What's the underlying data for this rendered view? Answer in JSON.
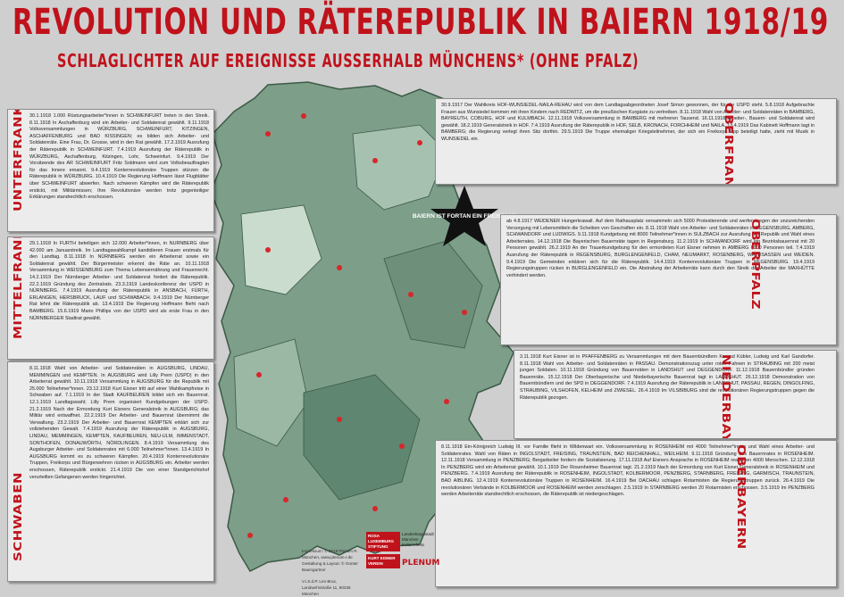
{
  "header": {
    "title": "REVOLUTION UND RÄTEREPUBLIK IN BAIERN 1918/19",
    "subtitle": "SCHLAGLICHTER AUF EREIGNISSE AUSSERHALB MÜNCHENS* (OHNE PFALZ)"
  },
  "panels": [
    {
      "label": "UNTERFRANKEN",
      "text": "30.1.1918 1.000 Rüstungsarbeiter*innen in SCHWEINFURT treten in den Streik. 8.11.1918 In Aschaffenburg wird ein Arbeiter- und Soldatenrat gewählt. 9.11.1918 Volksversammlungen in WÜRZBURG, SCHWEINFURT, KITZINGEN, ASCHAFFENBURG und BAD KISSINGEN; es bilden sich Arbeiter- und Soldatenräte. Eine Frau, Dr. Grosse, wird in den Rat gewählt. 17.2.1919 Ausrufung der Räterepublik in SCHWEINFURT. 7.4.1919 Ausrufung der Räterepublik in WÜRZBURG, Aschaffenburg, Kitzingen, Lohr, Schweinfurt. 9.4.1919 Der Vorsitzende des AR SCHWEINFURT Fritz Soldmann wird zum Volksbeauftragten für das Innere ernannt. 9.4.1919 Konterrevolutionäre Truppen stürzen die Räterepublik in WÜRZBURG. 10.4.1919 Die Regierung Hoffmann lässt Flugblätter über SCHWEINFURT abwerfen. Nach schweren Kämpfen wird die Räterepublik erstickt, mit Militärmissen; Ihre Revolutionäre werden trotz gegenteiliger Erklärungen standrechtlich erschossen."
    },
    {
      "label": "MITTELFRANKEN",
      "text": "29.1.1918 In FÜRTH beteiligen sich 12.000 Arbeiter*innen, in NÜRNBERG über 42.000 am Januarstreik. Im Landtagswahlkampf kandidieren Frauen erstmals für den Landtag. 8.11.1918 In NÜRNBERG werden ein Arbeiterrat sowie ein Soldatenrat gewählt. Der Bürgermeister erkennt die Räte an. 10.11.1918 Versammlung in WEISSENBURG zum Thema Lebensernährung und Frauenrecht. 14.2.1919 Der Nürnberger Arbeiter- und Soldatenrat fordert die Räterepublik. 22.2.1919 Gründung des Zentralrats. 23.3.1919 Landeskonferenz der USPD in NÜRNBERG. 7.4.1919 Ausrufung der Räterepublik in ANSBACH, FÜRTH, ERLANGEN, HERSBRUCK, LAUF und SCHWABACH. 9.4.1919 Der Nürnberger Rat lehnt die Räterepublik ab. 13.4.1919 Die Regierung Hoffmann flieht nach BAMBERG. 15.6.1919 Mario Phillips von der USPD wird als erste Frau in den NÜRNBERGER Stadtrat gewählt."
    },
    {
      "label": "SCHWABEN",
      "text": "8.11.1918 Wahl von Arbeiter- und Soldatenräten in AUGSBURG, LINDAU, MEMMINGEN und KEMPTEN. In AUGSBURG wird Lilly Prem (USPD) in den Arbeiterrat gewählt. 10.11.1918 Versammlung in AUGSBURG für die Republik mit 25.000 Teilnehmer*innen. 23.12.1918 Kurt Eisner tritt auf einer Wahlkampfreise in Schwaben auf. 7.1.1919 In der Stadt KAUFBEUREN bildet sich ein Bauernrat. 12.1.1919 Landtagswahl; Lilly Prem organisiert Kundgebungen der USPD. 21.2.1919 Nach der Ermordung Kurt Eisners Generalstreik in AUGSBURG; das Militär wird entwaffnet. 22.2.1919 Der Arbeiter- und Bauernrat übernimmt die Verwaltung. 23.2.1919 Der Arbeiter- und Bauernrat KEMPTEN erklärt sich zur vollziehenden Gewalt. 7.4.1919 Ausrufung der Räterepublik in AUGSBURG, LINDAU, MEMMINGEN, KEMPTEN, KAUFBEUREN, NEU-ULM, IMMENSTADT, SONTHOFEN, DONAUWÖRTH, NÖRDLINGEN. 8.4.1919 Versammlung des Augsburger Arbeiter- und Soldatenrates mit 6.000 Teilnehmer*innen. 13.4.1919 In AUGSBURG kommt es zu schweren Kämpfen. 20.4.1919 Konterrevolutionäre Truppen, Freikorps und Bürgerwehren rücken in AUGSBURG ein. Arbeiter werden erschossen, Räterepublik erstickt. 21.4.1919 Die von einer Standgerichtshof verurteilten Gefangenen werden hingerichtet."
    },
    {
      "label": "OBERFRANKEN",
      "text": "30.9.1917 Der Wahlkreis HOF-WUNSIEDEL-NAILA-REHAU wird von dem Landtagsabgeordneten Josef Simon gewonnen, der für die USPD steht. 5.8.1918 Aufgebrachte Frauen aus Wunsiedel kommen mit ihren Kindern nach REDWITZ, um die preußischen Kurgäste zu vertreiben. 8.11.1918 Wahl von Arbeiter- und Soldatenräten in BAMBERG, BAYREUTH, COBURG, HOF und KULMBACH. 12.11.1918 Volksversammlung in BAMBERG mit mehreren Tausend. 16.11.1918 Arbeiter-, Bauern- und Soldatenrat wird gewählt. 18.2.1919 Generalstreik in HOF. 7.4.1919 Ausrufung der Räterepublik in HOF, SELB, KRONACH, FORCHHEIM und NAILA. 13.4.1919 Das Kabinett Hoffmann tagt in BAMBERG; die Regierung verlegt ihren Sitz dorthin. 29.5.1919 Die Truppe ehemaliger Kriegsteilnehmer, der sich ein Freikorps Epp beteiligt hatte, zieht mit Musik in WUNSIEDEL ein."
    },
    {
      "label": "OBERPFALZ",
      "text": "ab 4.8.1917 WEIDENER Hungerkrawall. Auf dem Rathausplatz versammeln sich 5000 Protestierende und werfen wegen der unzureichenden Versorgung mit Lebensmitteln die Scheiben von Geschäften ein. 8.11.1918 Wahl von Arbeiter- und Soldatenräten in REGENSBURG, AMBERG, SCHWANDORF und LUDWIGS. 9.11.1918 Kundgebung mit 8000 Teilnehmer*innen in SULZBACH zur Ausrufung der Republik und Wahl eines Arbeiterrates. 14.12.1918 Die Bayerischen Bauernräte tagen in Regensburg. 11.2.1919 In SCHWANDORF wird ein Bezirksbauernrat mit 20 Personen gewählt. 26.2.1919 An der Trauerkundgebung für den ermordeten Kurt Eisner nehmen in AMBERG 6000 Personen teil. 7.4.1919 Ausrufung der Räterepublik in REGENSBURG, BURGLENGENFELD, CHAM, NEUMARKT, ROSENBERG, WALDSASSEN und WEIDEN. 9.4.1919 Die Gemeinden erklären sich für die Räterepublik. 14.4.1919 Konterrevolutionäre Truppen in REGENSBURG. 19.4.1919 Regierungstruppen rücken in BURGLENGENFELD ein. Die Abstrafung der Arbeiterräte kann durch den Streik der Arbeiter der MAXHÜTTE verhindert werden."
    },
    {
      "label": "NIEDERBAYERN",
      "text": "3.11.1918 Kurt Eisner ist in PFAFFENBERG zu Versammlungen mit dem Bauernbündlern Konrad Kübler, Ludwig und Karl Gandorfer. 8.11.1918 Wahl von Arbeiter- und Soldatenräten in PASSAU. Demonstrationszug unter roten Fahnen in STRAUBING mit 200 meist jungen Soldaten. 10.11.1918 Gründung von Bauernräten in LANDSHUT und DEGGENDORF. 11.12.1918 Bauernbündler gründen Bauernräte. 15.12.1918 Der Oberbayerische und Niederbayerische Bauernrat tagt in LANDSHUT. 26.12.1918 Demonstration von Bauernbündlern und der SPD in DEGGENDORF. 7.4.1919 Ausrufung der Räterepublik in LANDSHUT, PASSAU, REGEN, DINGOLFING, STRAUBING, VILSHOFEN, KELHEIM und ZWIESEL. 26.4.1919 Im VILSBIBURG sind die revolutionären Regierungstruppen gegen die Räterepublik gezogen."
    },
    {
      "label": "OBERBAYERN",
      "text": "8.11.1918 Ein-Königreich Ludwig III. vor Familie flieht in Wildenwart ein. Volksversammlung in ROSENHEIM mit 4000 Teilnehmer*innen und Wahl eines Arbeiter- und Soldatenrates. Wahl von Räten in INGOLSTADT, FREISING, TRAUNSTEIN, BAD REICHENHALL, WEILHEIM. 9.11.1918 Gründung des Bauernrates in ROSENHEIM. 12.11.1918 Versammlung in PENZBERG; Bergarbeiter fordern die Sozialisierung. 17.11.1918 Auf Eisners Ansprache in ROSENHEIM reagieren 4000 Menschen. 12.12.1918 In PENZBERG wird ein Arbeiterrat gewählt. 10.1.1919 Der Rosenheimer Bauernrat tagt. 21.2.1919 Nach der Ermordung von Kurt Eisner Generalstreik in ROSENHEIM und PENZBERG. 7.4.1919 Ausrufung der Räterepublik in ROSENHEIM, INGOLSTADT, KOLBERMOOR, PENZBERG, STARNBERG, FREISING, GARMISCH, TRAUNSTEIN, BAD AIBLING. 12.4.1919 Konterrevolutionäre Truppen in ROSENHEIM. 16.4.1919 Bei DACHAU schlagen Rotarmisten die Regierungstruppen zurück. 26.4.1919 Die revolutionären Verbände in KOLBERMOOR und ROSENHEIM werden zerschlagen. 2.5.1919 In STARNBERG werden 20 Rotarmisten erschossen. 3.5.1919 Im PENZBERG werden Arbeiterräte standrechtlich erschossen, die Räterepublik ist niedergeschlagen."
    }
  ],
  "star": "BAIERN IST FORTAN EIN FREISTAAT.",
  "imprint": [
    "Impressum: © 2019 Plenum R. München, www.plenum-r.de",
    "Gestaltung & Layout: © Günter Baumgartner",
    "V.i.S.d.P. Leo Brux, Landwehrstraße 11, 80336 München"
  ],
  "logos": [
    "ROSA LUXEMBURG STIFTUNG",
    "KURT EISNER VEREIN",
    "Landeshauptstadt München Kulturreferat",
    "PLENUM"
  ]
}
